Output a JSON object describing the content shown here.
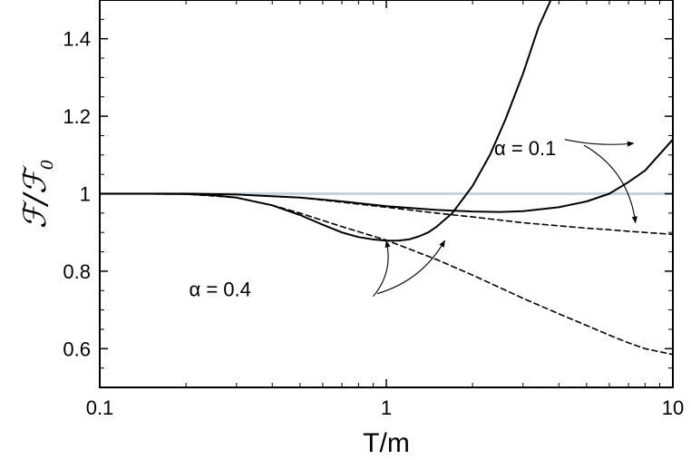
{
  "chart_data": {
    "type": "line",
    "xlabel": "T/m",
    "ylabel": "ℱ/ℱ",
    "ylabel_sub": "0",
    "x_scale": "log",
    "xlim": [
      0.1,
      10
    ],
    "ylim": [
      0.5,
      1.5
    ],
    "x_ticks": [
      0.1,
      1,
      10
    ],
    "x_tick_labels": [
      "0.1",
      "1",
      "10"
    ],
    "y_ticks": [
      0.6,
      0.8,
      1.0,
      1.2,
      1.4
    ],
    "y_tick_labels": [
      "0.6",
      "0.8",
      "1",
      "1.2",
      "1.4"
    ],
    "grid": false,
    "legend": "none",
    "series": [
      {
        "style": "solid",
        "color": "#c8d4dc",
        "width": 3,
        "x": [
          0.1,
          10
        ],
        "y": [
          1.0,
          1.0
        ]
      },
      {
        "style": "solid",
        "color": "#000000",
        "width": 2,
        "x": [
          0.1,
          0.15,
          0.2,
          0.25,
          0.3,
          0.4,
          0.5,
          0.6,
          0.7,
          0.8,
          0.9,
          1.0,
          1.1,
          1.2,
          1.3,
          1.4,
          1.5,
          1.7,
          2.0,
          2.3,
          2.6,
          3.0,
          3.4,
          3.75
        ],
        "y": [
          1.0,
          1.0,
          0.999,
          0.996,
          0.99,
          0.97,
          0.945,
          0.92,
          0.9,
          0.888,
          0.882,
          0.879,
          0.879,
          0.882,
          0.89,
          0.9,
          0.915,
          0.95,
          1.02,
          1.1,
          1.19,
          1.31,
          1.43,
          1.5
        ]
      },
      {
        "style": "solid",
        "color": "#000000",
        "width": 2,
        "x": [
          0.1,
          0.2,
          0.3,
          0.5,
          0.7,
          1.0,
          1.5,
          2.0,
          2.5,
          3.0,
          4.0,
          5.0,
          6.0,
          7.0,
          8.0,
          10.0
        ],
        "y": [
          1.0,
          1.0,
          0.998,
          0.99,
          0.98,
          0.968,
          0.958,
          0.954,
          0.953,
          0.955,
          0.965,
          0.98,
          1.0,
          1.03,
          1.06,
          1.14
        ]
      },
      {
        "style": "dashed",
        "color": "#000000",
        "width": 1.6,
        "x": [
          0.1,
          0.2,
          0.3,
          0.4,
          0.5,
          0.7,
          1.0,
          1.5,
          2.0,
          3.0,
          4.0,
          5.0,
          6.0,
          7.0,
          8.0,
          10.0
        ],
        "y": [
          1.0,
          0.999,
          0.99,
          0.97,
          0.95,
          0.915,
          0.88,
          0.83,
          0.79,
          0.73,
          0.69,
          0.66,
          0.635,
          0.615,
          0.6,
          0.585
        ]
      },
      {
        "style": "dashed",
        "color": "#000000",
        "width": 1.6,
        "x": [
          0.1,
          0.2,
          0.3,
          0.5,
          0.7,
          1.0,
          1.5,
          2.0,
          3.0,
          4.0,
          5.0,
          6.0,
          7.0,
          8.0,
          10.0
        ],
        "y": [
          1.0,
          1.0,
          0.998,
          0.99,
          0.978,
          0.965,
          0.95,
          0.94,
          0.925,
          0.917,
          0.911,
          0.907,
          0.903,
          0.9,
          0.895
        ]
      }
    ],
    "annotations": [
      {
        "text": "α = 0.1",
        "text_at": [
          2.38,
          1.1
        ],
        "arrows": [
          {
            "from": [
              4.2,
              1.14
            ],
            "to": [
              7.3,
              1.13
            ],
            "bend": 0.08
          },
          {
            "from": [
              4.9,
              1.125
            ],
            "to": [
              7.4,
              0.925
            ],
            "bend": -0.25
          }
        ]
      },
      {
        "text": "α = 0.4",
        "text_at": [
          0.205,
          0.735
        ],
        "arrows": [
          {
            "from": [
              0.9,
              0.735
            ],
            "to": [
              1.0,
              0.878
            ],
            "bend": 0.25
          },
          {
            "from": [
              0.93,
              0.742
            ],
            "to": [
              1.6,
              0.879
            ],
            "bend": 0.2
          }
        ]
      }
    ]
  }
}
